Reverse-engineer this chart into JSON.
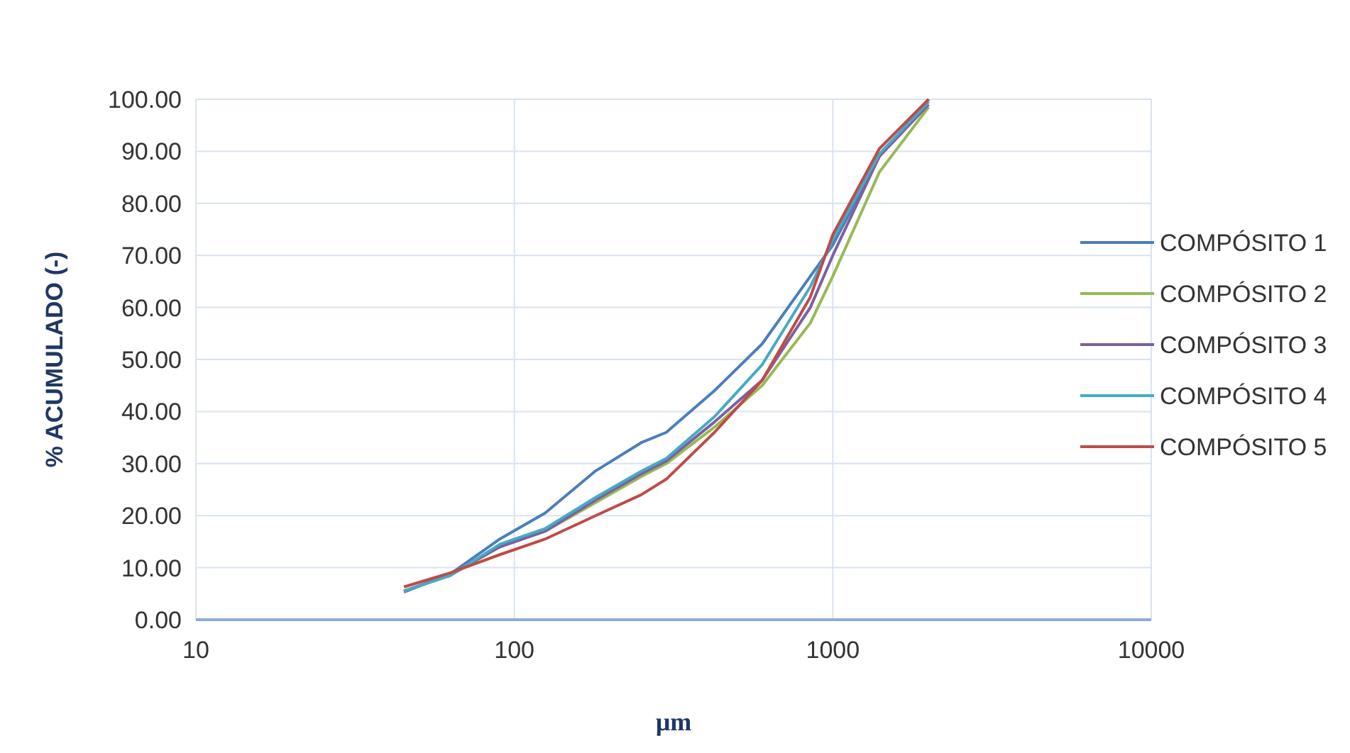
{
  "chart_data": {
    "type": "line",
    "xlabel": "µm",
    "ylabel": "% ACUMULADO (-)",
    "log": "x",
    "xlim": [
      10,
      10000
    ],
    "xticks": [
      10,
      100,
      1000,
      10000
    ],
    "ylim": [
      0,
      100
    ],
    "yticks": [
      {
        "value": 0,
        "label": "0.00"
      },
      {
        "value": 10,
        "label": "10.00"
      },
      {
        "value": 20,
        "label": "20.00"
      },
      {
        "value": 30,
        "label": "30.00"
      },
      {
        "value": 40,
        "label": "40.00"
      },
      {
        "value": 50,
        "label": "50.00"
      },
      {
        "value": 60,
        "label": "60.00"
      },
      {
        "value": 70,
        "label": "70.00"
      },
      {
        "value": 80,
        "label": "80.00"
      },
      {
        "value": 90,
        "label": "90.00"
      },
      {
        "value": 100,
        "label": "100.00"
      }
    ],
    "grid": true,
    "legend": "right",
    "marker": "none",
    "line_style": "solid",
    "x": [
      45,
      63,
      90,
      125,
      180,
      250,
      300,
      425,
      600,
      850,
      1000,
      1400,
      2000
    ],
    "series": [
      {
        "name": "COMPÓSITO 1",
        "color": "#4a7ebb",
        "values": [
          5.3,
          8.8,
          15.5,
          20.5,
          28.6,
          34,
          36,
          44,
          53,
          66,
          72,
          89,
          100
        ]
      },
      {
        "name": "COMPÓSITO 2",
        "color": "#98b954",
        "values": [
          5.5,
          8.5,
          14,
          17,
          22.5,
          27.5,
          30,
          37,
          45,
          57,
          66,
          86,
          98.5
        ]
      },
      {
        "name": "COMPÓSITO 3",
        "color": "#7d60a0",
        "values": [
          5.5,
          8.7,
          14,
          17,
          23,
          28,
          30.5,
          38,
          46,
          60,
          70,
          89,
          99
        ]
      },
      {
        "name": "COMPÓSITO 4",
        "color": "#46aac5",
        "values": [
          5.5,
          8.5,
          14.5,
          17.5,
          23.5,
          28.5,
          31,
          39,
          49,
          64,
          73,
          89.5,
          99.5
        ]
      },
      {
        "name": "COMPÓSITO 5",
        "color": "#be4b48",
        "values": [
          6.3,
          9,
          12.5,
          15.5,
          20,
          24,
          27,
          36,
          46,
          62,
          74,
          90.5,
          100
        ]
      }
    ]
  }
}
